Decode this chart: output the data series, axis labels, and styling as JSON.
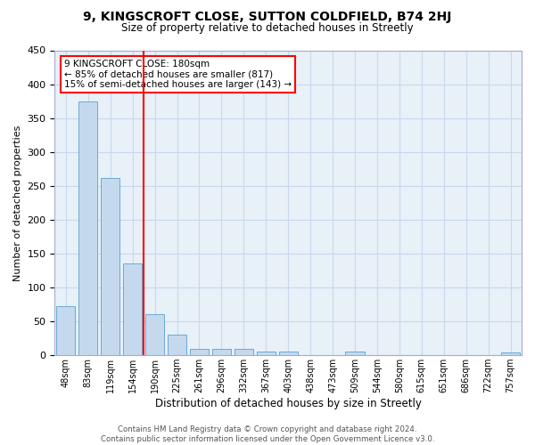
{
  "title1": "9, KINGSCROFT CLOSE, SUTTON COLDFIELD, B74 2HJ",
  "title2": "Size of property relative to detached houses in Streetly",
  "xlabel": "Distribution of detached houses by size in Streetly",
  "ylabel": "Number of detached properties",
  "categories": [
    "48sqm",
    "83sqm",
    "119sqm",
    "154sqm",
    "190sqm",
    "225sqm",
    "261sqm",
    "296sqm",
    "332sqm",
    "367sqm",
    "403sqm",
    "438sqm",
    "473sqm",
    "509sqm",
    "544sqm",
    "580sqm",
    "615sqm",
    "651sqm",
    "686sqm",
    "722sqm",
    "757sqm"
  ],
  "values": [
    72,
    375,
    262,
    136,
    60,
    30,
    10,
    9,
    10,
    5,
    5,
    0,
    0,
    5,
    0,
    0,
    0,
    0,
    0,
    0,
    4
  ],
  "bar_color": "#c5d9ee",
  "bar_edge_color": "#6aaad4",
  "grid_color": "#c8d8ec",
  "background_color": "#e8f0f8",
  "vline_color": "red",
  "annotation_text": "9 KINGSCROFT CLOSE: 180sqm\n← 85% of detached houses are smaller (817)\n15% of semi-detached houses are larger (143) →",
  "annotation_box_color": "white",
  "annotation_box_edge": "red",
  "ylim": [
    0,
    450
  ],
  "yticks": [
    0,
    50,
    100,
    150,
    200,
    250,
    300,
    350,
    400,
    450
  ],
  "footer1": "Contains HM Land Registry data © Crown copyright and database right 2024.",
  "footer2": "Contains public sector information licensed under the Open Government Licence v3.0."
}
